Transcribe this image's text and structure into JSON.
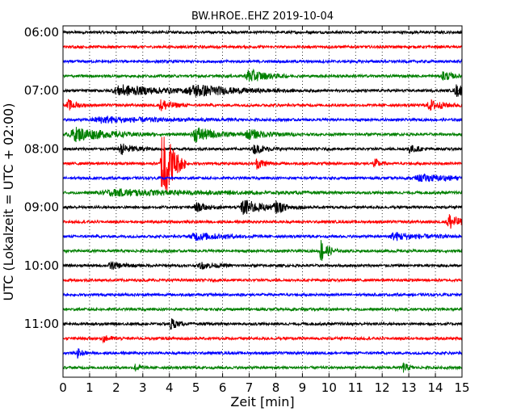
{
  "chart_data": {
    "type": "line",
    "title": "BW.HROE..EHZ 2019-10-04",
    "xlabel": "Zeit  [min]",
    "ylabel": "UTC (Lokalzeit = UTC + 02:00)",
    "xlim": [
      0,
      15
    ],
    "x_ticks": [
      0,
      1,
      2,
      3,
      4,
      5,
      6,
      7,
      8,
      9,
      10,
      11,
      12,
      13,
      14,
      15
    ],
    "y_tick_labels": [
      "06:00",
      "07:00",
      "08:00",
      "09:00",
      "10:00",
      "11:00"
    ],
    "start_time": "06:00",
    "trace_interval_min": 15,
    "grid": "vertical dotted",
    "trace_colors": [
      "#000000",
      "#ff0000",
      "#0000ff",
      "#008000"
    ],
    "traces": [
      {
        "start": "06:00",
        "color": "#000000",
        "events": []
      },
      {
        "start": "06:15",
        "color": "#ff0000",
        "events": []
      },
      {
        "start": "06:30",
        "color": "#0000ff",
        "events": []
      },
      {
        "start": "06:45",
        "color": "#008000",
        "events": [
          {
            "t": 7.0,
            "amp": 0.45,
            "width": 0.6
          },
          {
            "t": 14.3,
            "amp": 0.35,
            "width": 0.3
          }
        ]
      },
      {
        "start": "07:00",
        "color": "#000000",
        "events": [
          {
            "t": 2.2,
            "amp": 0.35,
            "width": 1.5
          },
          {
            "t": 5.0,
            "amp": 0.35,
            "width": 1.5
          },
          {
            "t": 14.8,
            "amp": 0.4,
            "width": 0.4
          }
        ]
      },
      {
        "start": "07:15",
        "color": "#ff0000",
        "events": [
          {
            "t": 0.2,
            "amp": 0.35,
            "width": 0.3
          },
          {
            "t": 3.7,
            "amp": 0.4,
            "width": 0.4
          },
          {
            "t": 13.8,
            "amp": 0.35,
            "width": 0.5
          }
        ]
      },
      {
        "start": "07:30",
        "color": "#0000ff",
        "events": [
          {
            "t": 1.5,
            "amp": 0.2,
            "width": 2.0
          }
        ]
      },
      {
        "start": "07:45",
        "color": "#008000",
        "events": [
          {
            "t": 0.5,
            "amp": 0.45,
            "width": 1.2
          },
          {
            "t": 5.0,
            "amp": 0.5,
            "width": 0.7
          },
          {
            "t": 7.0,
            "amp": 0.3,
            "width": 0.8
          }
        ]
      },
      {
        "start": "08:00",
        "color": "#000000",
        "events": [
          {
            "t": 2.2,
            "amp": 0.35,
            "width": 0.5
          },
          {
            "t": 7.2,
            "amp": 0.3,
            "width": 0.4
          },
          {
            "t": 13.0,
            "amp": 0.3,
            "width": 0.3
          }
        ]
      },
      {
        "start": "08:15",
        "color": "#ff0000",
        "events": [
          {
            "t": 3.75,
            "amp": 3.2,
            "width": 0.35
          },
          {
            "t": 7.3,
            "amp": 0.35,
            "width": 0.3
          },
          {
            "t": 11.7,
            "amp": 0.35,
            "width": 0.2
          }
        ]
      },
      {
        "start": "08:30",
        "color": "#0000ff",
        "events": [
          {
            "t": 13.5,
            "amp": 0.2,
            "width": 1.5
          }
        ]
      },
      {
        "start": "08:45",
        "color": "#008000",
        "events": [
          {
            "t": 2.0,
            "amp": 0.2,
            "width": 3.0
          }
        ]
      },
      {
        "start": "09:00",
        "color": "#000000",
        "events": [
          {
            "t": 6.8,
            "amp": 0.55,
            "width": 0.6
          },
          {
            "t": 8.0,
            "amp": 0.3,
            "width": 0.5
          },
          {
            "t": 5.0,
            "amp": 0.3,
            "width": 0.4
          }
        ]
      },
      {
        "start": "09:15",
        "color": "#ff0000",
        "events": [
          {
            "t": 14.5,
            "amp": 0.6,
            "width": 0.35
          }
        ]
      },
      {
        "start": "09:30",
        "color": "#0000ff",
        "events": [
          {
            "t": 5.0,
            "amp": 0.25,
            "width": 1.0
          },
          {
            "t": 12.5,
            "amp": 0.25,
            "width": 1.0
          }
        ]
      },
      {
        "start": "09:45",
        "color": "#008000",
        "events": [
          {
            "t": 9.7,
            "amp": 0.8,
            "width": 0.25
          }
        ]
      },
      {
        "start": "10:00",
        "color": "#000000",
        "events": [
          {
            "t": 1.8,
            "amp": 0.25,
            "width": 0.4
          },
          {
            "t": 5.2,
            "amp": 0.2,
            "width": 0.5
          }
        ]
      },
      {
        "start": "10:15",
        "color": "#ff0000",
        "events": []
      },
      {
        "start": "10:30",
        "color": "#0000ff",
        "events": []
      },
      {
        "start": "10:45",
        "color": "#008000",
        "events": []
      },
      {
        "start": "11:00",
        "color": "#000000",
        "events": [
          {
            "t": 4.05,
            "amp": 0.45,
            "width": 0.2
          }
        ]
      },
      {
        "start": "11:15",
        "color": "#ff0000",
        "events": [
          {
            "t": 1.5,
            "amp": 0.2,
            "width": 0.3
          }
        ]
      },
      {
        "start": "11:30",
        "color": "#0000ff",
        "events": [
          {
            "t": 0.55,
            "amp": 0.3,
            "width": 0.15
          }
        ]
      },
      {
        "start": "11:45",
        "color": "#008000",
        "events": [
          {
            "t": 2.7,
            "amp": 0.25,
            "width": 0.2
          },
          {
            "t": 12.8,
            "amp": 0.3,
            "width": 0.2
          }
        ]
      }
    ]
  }
}
